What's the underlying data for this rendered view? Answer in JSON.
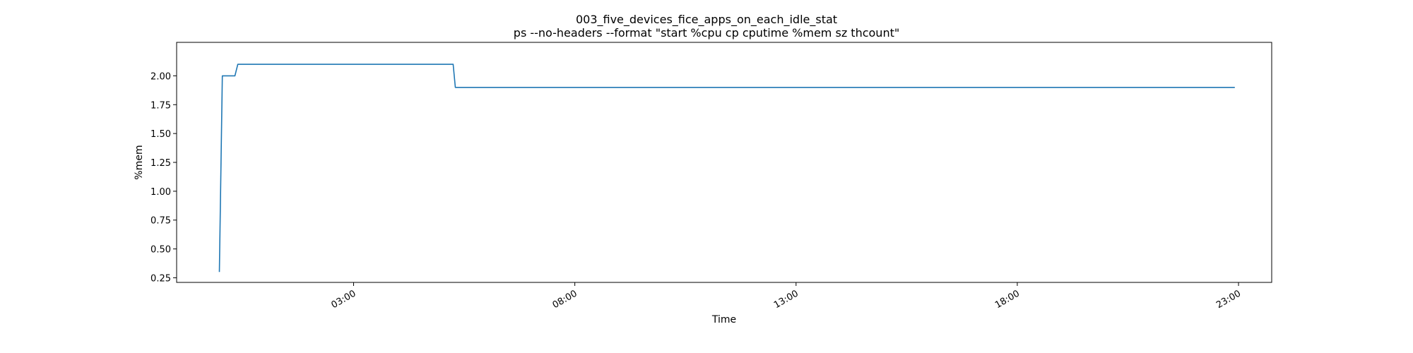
{
  "chart_data": {
    "type": "line",
    "title": "003_five_devices_fice_apps_on_each_idle_stat",
    "subtitle": "ps --no-headers --format \"start %cpu cp cputime %mem sz thcount\"",
    "xlabel": "Time",
    "ylabel": "%mem",
    "xlim": [
      "2000-01-01T23:00",
      "2000-01-02T23:45"
    ],
    "ylim": [
      0.21,
      2.29
    ],
    "grid": false,
    "x_ticks": [
      "03:00",
      "08:00",
      "13:00",
      "18:00",
      "23:00"
    ],
    "x_tick_times": [
      "2000-01-02T03:00",
      "2000-01-02T08:00",
      "2000-01-02T13:00",
      "2000-01-02T18:00",
      "2000-01-02T23:00"
    ],
    "y_ticks": [
      "0.25",
      "0.50",
      "0.75",
      "1.00",
      "1.25",
      "1.50",
      "1.75",
      "2.00"
    ],
    "y_tick_values": [
      0.25,
      0.5,
      0.75,
      1.0,
      1.25,
      1.5,
      1.75,
      2.0
    ],
    "series": [
      {
        "color": "#1f77b4",
        "x": [
          "2000-01-01T23:58",
          "2000-01-02T00:02",
          "2000-01-02T00:19",
          "2000-01-02T00:23",
          "2000-01-02T01:00",
          "2000-01-02T05:15",
          "2000-01-02T05:18",
          "2000-01-02T08:00",
          "2000-01-02T22:55"
        ],
        "y": [
          0.3,
          2.0,
          2.0,
          2.1,
          2.1,
          2.1,
          1.9,
          1.9,
          1.9
        ]
      }
    ]
  }
}
